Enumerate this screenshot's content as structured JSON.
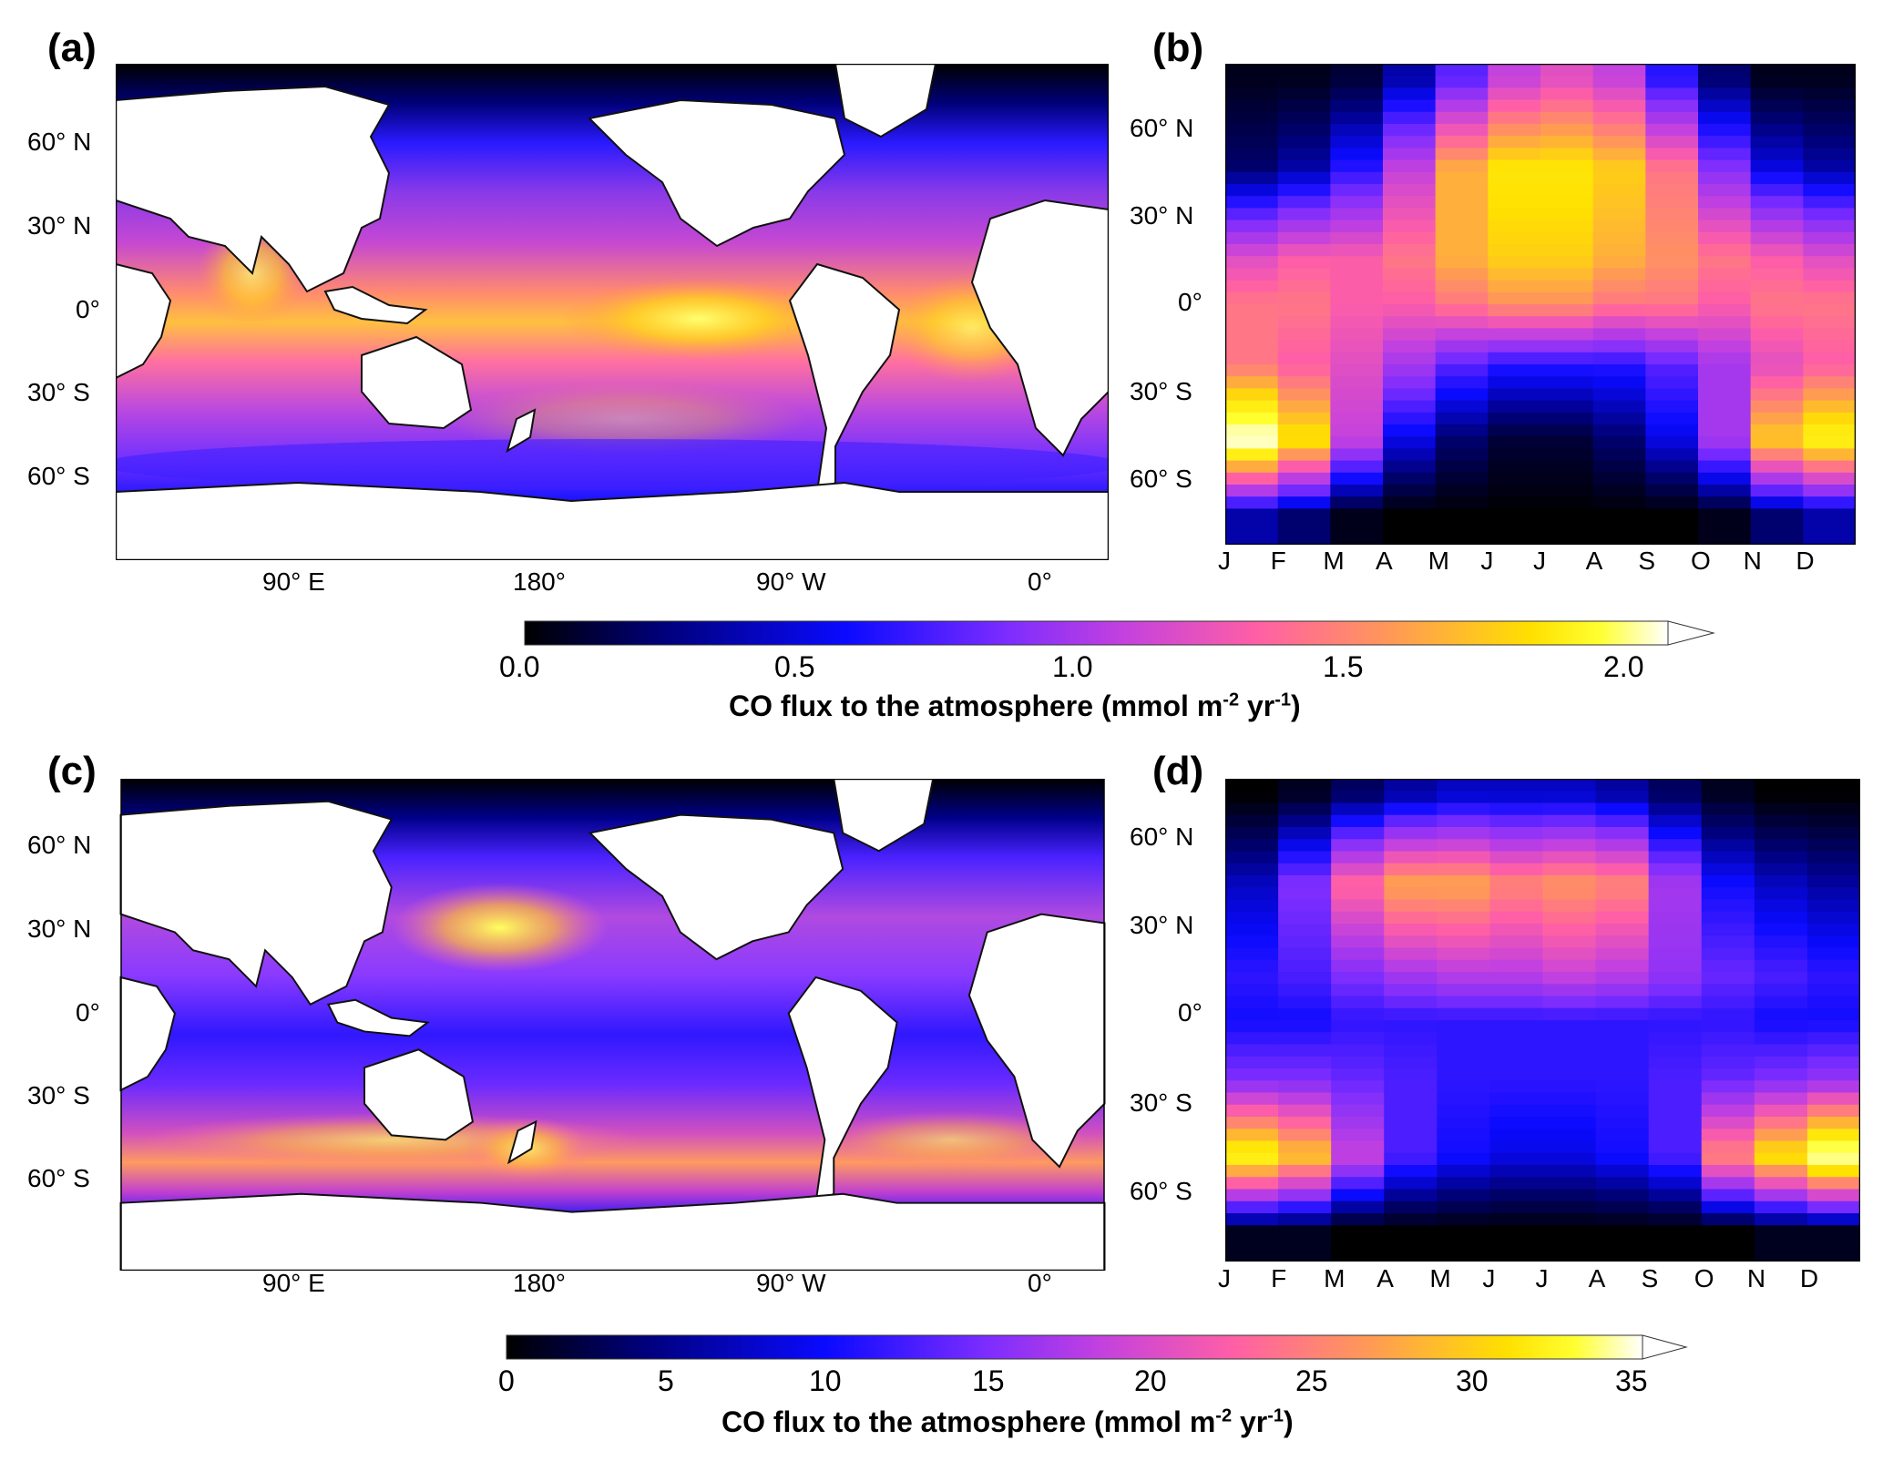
{
  "panels": {
    "a": {
      "label": "(a)"
    },
    "b": {
      "label": "(b)"
    },
    "c": {
      "label": "(c)"
    },
    "d": {
      "label": "(d)"
    }
  },
  "map_lat_ticks": [
    "60° N",
    "30° N",
    "0°",
    "30° S",
    "60° S"
  ],
  "map_lon_ticks": [
    "90° E",
    "180°",
    "90° W",
    "0°"
  ],
  "month_ticks": [
    "J",
    "F",
    "M",
    "A",
    "M",
    "J",
    "J",
    "A",
    "S",
    "O",
    "N",
    "D"
  ],
  "colorbar_top": {
    "ticks": [
      "0.0",
      "0.5",
      "1.0",
      "1.5",
      "2.0"
    ],
    "label_main": "CO flux to the atmosphere (mmol m",
    "label_sup1": "-2",
    "label_mid": " yr",
    "label_sup2": "-1",
    "label_end": ")"
  },
  "colorbar_bottom": {
    "ticks": [
      "0",
      "5",
      "10",
      "15",
      "20",
      "25",
      "30",
      "35"
    ],
    "label_main": "CO flux to the atmosphere (mmol m",
    "label_sup1": "-2",
    "label_mid": " yr",
    "label_sup2": "-1",
    "label_end": ")"
  },
  "colormap": [
    "#000000",
    "#00007a",
    "#0a0aff",
    "#7b2cff",
    "#c140e0",
    "#ff5fa6",
    "#ff9a55",
    "#ffe000",
    "#ffff30",
    "#ffffff"
  ],
  "chart_data": [
    {
      "type": "heatmap",
      "panel": "b",
      "x": [
        "J",
        "F",
        "M",
        "A",
        "M",
        "J",
        "J",
        "A",
        "S",
        "O",
        "N",
        "D"
      ],
      "y": [
        "60° N",
        "30° N",
        "0°",
        "30° S",
        "60° S"
      ],
      "ylim": [
        -80,
        80
      ],
      "colorbar_range": [
        0.0,
        2.0
      ],
      "latitude_band_values": [
        {
          "lat": 75,
          "values": [
            0.05,
            0.05,
            0.1,
            0.3,
            0.6,
            0.9,
            1.0,
            0.9,
            0.5,
            0.2,
            0.05,
            0.05
          ]
        },
        {
          "lat": 45,
          "values": [
            0.2,
            0.3,
            0.5,
            0.9,
            1.4,
            1.6,
            1.6,
            1.5,
            1.2,
            0.7,
            0.4,
            0.3
          ]
        },
        {
          "lat": 15,
          "values": [
            1.0,
            1.1,
            1.1,
            1.2,
            1.4,
            1.5,
            1.5,
            1.4,
            1.3,
            1.2,
            1.1,
            1.0
          ]
        },
        {
          "lat": 0,
          "values": [
            1.2,
            1.2,
            1.1,
            1.1,
            1.2,
            1.3,
            1.3,
            1.2,
            1.2,
            1.1,
            1.2,
            1.2
          ]
        },
        {
          "lat": -20,
          "values": [
            1.2,
            1.1,
            1.0,
            0.8,
            0.6,
            0.5,
            0.5,
            0.5,
            0.6,
            0.8,
            1.0,
            1.1
          ]
        },
        {
          "lat": -45,
          "values": [
            2.0,
            1.6,
            0.9,
            0.4,
            0.2,
            0.1,
            0.1,
            0.2,
            0.4,
            0.8,
            1.5,
            1.7
          ]
        },
        {
          "lat": -70,
          "values": [
            0.3,
            0.2,
            0.05,
            0.0,
            0.0,
            0.0,
            0.0,
            0.0,
            0.0,
            0.05,
            0.2,
            0.3
          ]
        }
      ]
    },
    {
      "type": "heatmap",
      "panel": "d",
      "x": [
        "J",
        "F",
        "M",
        "A",
        "M",
        "J",
        "J",
        "A",
        "S",
        "O",
        "N",
        "D"
      ],
      "y": [
        "60° N",
        "30° N",
        "0°",
        "30° S",
        "60° S"
      ],
      "ylim": [
        -80,
        80
      ],
      "colorbar_range": [
        0,
        35
      ],
      "latitude_band_values": [
        {
          "lat": 75,
          "values": [
            0,
            1,
            3,
            5,
            6,
            6,
            6,
            5,
            3,
            1,
            0,
            0
          ]
        },
        {
          "lat": 45,
          "values": [
            6,
            12,
            20,
            24,
            24,
            22,
            23,
            22,
            14,
            8,
            6,
            5
          ]
        },
        {
          "lat": 15,
          "values": [
            9,
            10,
            12,
            14,
            15,
            15,
            16,
            15,
            13,
            11,
            10,
            9
          ]
        },
        {
          "lat": 0,
          "values": [
            8,
            8,
            9,
            9,
            9,
            9,
            9,
            9,
            9,
            9,
            8,
            8
          ]
        },
        {
          "lat": -20,
          "values": [
            12,
            12,
            11,
            10,
            9,
            9,
            9,
            9,
            10,
            11,
            12,
            13
          ]
        },
        {
          "lat": -45,
          "values": [
            30,
            26,
            16,
            10,
            8,
            7,
            7,
            8,
            10,
            22,
            28,
            34
          ]
        },
        {
          "lat": -70,
          "values": [
            1,
            1,
            0,
            0,
            0,
            0,
            0,
            0,
            0,
            0,
            1,
            1
          ]
        }
      ]
    }
  ]
}
